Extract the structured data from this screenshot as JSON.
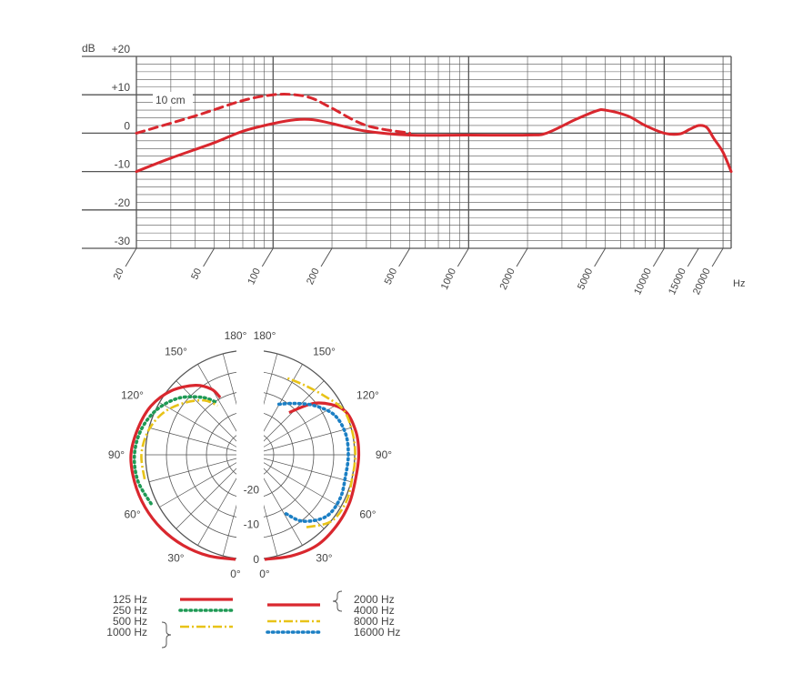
{
  "colors": {
    "grid": "#555555",
    "red": "#d9272e",
    "green": "#1f9a55",
    "yellow": "#e8c318",
    "blue": "#1b7fc4"
  },
  "chart_data": [
    {
      "type": "line",
      "xscale": "log",
      "xlim": [
        20,
        22000
      ],
      "ylim": [
        -30,
        20
      ],
      "ylabel": "dB",
      "xunit": "Hz",
      "y_ticks": [
        "+20",
        "+10",
        "0",
        "-10",
        "-20",
        "-30"
      ],
      "x_ticks": [
        "20",
        "50",
        "100",
        "200",
        "500",
        "1000",
        "2000",
        "5000",
        "10000",
        "15000",
        "20000"
      ],
      "annotations": [
        "10 cm"
      ],
      "grid": true,
      "series": [
        {
          "style": "solid",
          "x": [
            20,
            30,
            50,
            70,
            100,
            130,
            160,
            200,
            300,
            500,
            1000,
            2000,
            2500,
            3500,
            4500,
            5000,
            6500,
            8000,
            10000,
            12000,
            13500,
            15000,
            16500,
            18000,
            20000,
            22000
          ],
          "y": [
            -10,
            -6.5,
            -2.5,
            0.5,
            2.5,
            3.5,
            3.5,
            2.5,
            0.5,
            -0.5,
            -0.5,
            -0.5,
            0,
            3.5,
            5.8,
            6,
            4.5,
            2,
            0,
            -0.2,
            1,
            2,
            1.5,
            -1.5,
            -5,
            -10
          ]
        },
        {
          "style": "dashed",
          "label": "10 cm",
          "x": [
            20,
            40,
            70,
            100,
            130,
            160,
            200,
            300,
            500
          ],
          "y": [
            0,
            4.5,
            8.5,
            10,
            10,
            9,
            6.5,
            2,
            0
          ]
        }
      ]
    },
    {
      "type": "polar",
      "rlim": [
        -30,
        0
      ],
      "r_ticks": [
        "-20",
        "-10",
        "0"
      ],
      "angle_labels_left": [
        "180°",
        "150°",
        "120°",
        "90°",
        "60°",
        "30°",
        "0°"
      ],
      "angle_labels_right": [
        "180°",
        "150°",
        "120°",
        "90°",
        "60°",
        "30°",
        "0°"
      ],
      "series": [
        {
          "side": "left",
          "style": "solid",
          "name": "125 Hz",
          "angles": [
            0,
            15,
            30,
            45,
            60,
            75,
            90,
            105,
            120,
            135,
            150,
            160,
            165
          ],
          "values": [
            0,
            0,
            0,
            0,
            0,
            0,
            0,
            -1,
            -2,
            -4,
            -7,
            -10,
            -13
          ]
        },
        {
          "side": "left",
          "style": "dotted",
          "name": "250 Hz",
          "angles": [
            60,
            75,
            90,
            105,
            120,
            135,
            150,
            160
          ],
          "values": [
            -2,
            -1,
            -1,
            -2,
            -4,
            -7,
            -11,
            -14
          ]
        },
        {
          "side": "left",
          "style": "dashdot",
          "name": "500 Hz / 1000 Hz",
          "angles": [
            75,
            90,
            105,
            120,
            135,
            150,
            160
          ],
          "values": [
            -3,
            -3,
            -4,
            -6,
            -9,
            -12,
            -15
          ]
        },
        {
          "side": "right",
          "style": "solid",
          "name": "2000 Hz / 4000 Hz",
          "angles": [
            0,
            15,
            30,
            45,
            60,
            75,
            90,
            105,
            120,
            135,
            150
          ],
          "values": [
            0,
            0,
            0,
            -1,
            -2,
            -3,
            -3,
            -3,
            -4,
            -9,
            -16
          ]
        },
        {
          "side": "right",
          "style": "dashdot",
          "name": "8000 Hz",
          "angles": [
            30,
            45,
            60,
            75,
            90,
            105,
            120,
            135,
            150,
            165
          ],
          "values": [
            -6,
            -3,
            -3,
            -4,
            -4,
            -4,
            -4,
            -6,
            -7,
            -7
          ]
        },
        {
          "side": "right",
          "style": "dotted",
          "name": "16000 Hz",
          "angles": [
            20,
            30,
            45,
            60,
            75,
            90,
            105,
            120,
            135,
            150,
            165
          ],
          "values": [
            -12,
            -8,
            -5,
            -5,
            -6,
            -6,
            -6,
            -7,
            -10,
            -13,
            -15
          ]
        }
      ],
      "legend": {
        "left": [
          {
            "label": "125 Hz",
            "style": "solid",
            "color": "#d9272e"
          },
          {
            "label": "250 Hz",
            "style": "dotted",
            "color": "#1f9a55"
          },
          {
            "label": "500 Hz",
            "style": "dashdot",
            "color": "#e8c318"
          },
          {
            "label": "1000 Hz",
            "style": "none",
            "color": ""
          }
        ],
        "right": [
          {
            "label": "2000 Hz",
            "style": "solid",
            "color": "#d9272e"
          },
          {
            "label": "4000 Hz",
            "style": "none",
            "color": ""
          },
          {
            "label": "8000 Hz",
            "style": "dashdot",
            "color": "#e8c318"
          },
          {
            "label": "16000 Hz",
            "style": "dotted",
            "color": "#1b7fc4"
          }
        ]
      }
    }
  ]
}
